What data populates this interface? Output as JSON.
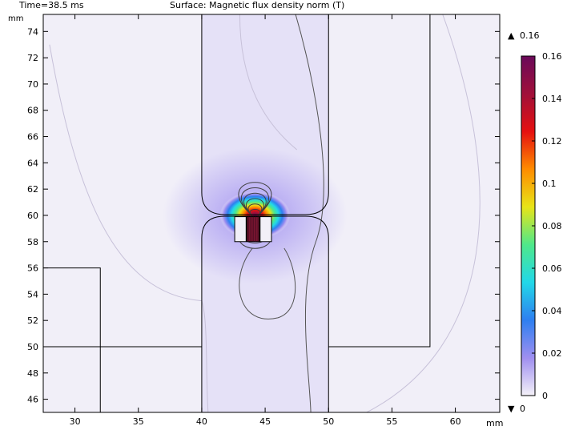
{
  "header": {
    "time_label": "Time=38.5 ms",
    "title": "Surface: Magnetic flux density norm (T)"
  },
  "chart_data": {
    "type": "heatmap",
    "title": "Surface: Magnetic flux density norm (T)",
    "time": "Time=38.5 ms",
    "x_unit": "mm",
    "y_unit": "mm",
    "xlim": [
      27.5,
      63.5
    ],
    "ylim": [
      45,
      75.3
    ],
    "x_ticks": [
      30,
      35,
      40,
      45,
      50,
      55,
      60
    ],
    "y_ticks": [
      46,
      48,
      50,
      52,
      54,
      56,
      58,
      60,
      62,
      64,
      66,
      68,
      70,
      72,
      74
    ],
    "colorbar": {
      "min": 0,
      "max": 0.16,
      "min_label": "0",
      "max_label": "0.16",
      "ticks": [
        0,
        0.02,
        0.04,
        0.06,
        0.08,
        0.1,
        0.12,
        0.14,
        0.16
      ],
      "tick_labels": [
        "0",
        "0.02",
        "0.04",
        "0.06",
        "0.08",
        "0.1",
        "0.12",
        "0.14",
        "0.16"
      ],
      "colors": [
        "#f4f1f8",
        "#9f8ff0",
        "#2e7ff0",
        "#22d8e8",
        "#4fe88a",
        "#e8e418",
        "#ff8c00",
        "#e51010",
        "#a0103a",
        "#6a0a5a"
      ]
    },
    "field_peak": {
      "x": 44.2,
      "y": 60.0,
      "value": 0.16
    },
    "background_value": 0.002,
    "core_value": 0.006,
    "geometry_mm": {
      "core_column": {
        "x": [
          40,
          50
        ],
        "y_top": 75.3,
        "y_bottom": 45
      },
      "gap_y": 60,
      "gap_corner_radius": 1.8,
      "outer_frame": {
        "x_right": 58,
        "y_bottom": 50
      },
      "left_step": {
        "x": 32,
        "y": 56
      },
      "coil_slots": [
        {
          "x": [
            42.6,
            43.5
          ],
          "y": [
            58.0,
            59.9
          ]
        },
        {
          "x": [
            44.6,
            45.5
          ],
          "y": [
            58.0,
            59.9
          ]
        }
      ]
    }
  }
}
